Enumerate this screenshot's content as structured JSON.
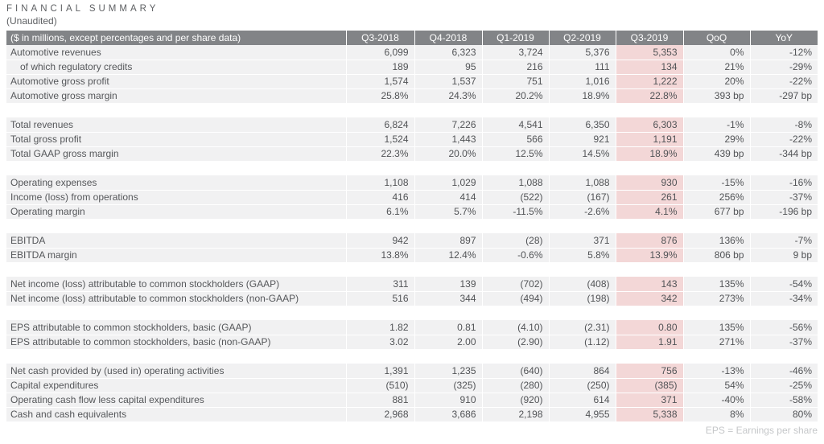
{
  "page": {
    "title": "FINANCIAL SUMMARY",
    "subtitle": "(Unaudited)",
    "footnote": "EPS = Earnings per share"
  },
  "colors": {
    "header_bg": "#828487",
    "row_bg": "#f1f1f2",
    "highlight_bg": "#f3d7d7",
    "header_text": "#ffffff",
    "body_text": "#515356",
    "footnote_text": "#c5c7c9"
  },
  "table": {
    "header_label": "($ in millions, except percentages and per share data)",
    "columns": [
      "Q3-2018",
      "Q4-2018",
      "Q1-2019",
      "Q2-2019",
      "Q3-2019",
      "QoQ",
      "YoY"
    ],
    "highlighted_column": "Q3-2019",
    "groups": [
      {
        "rows": [
          {
            "label": "Automotive revenues",
            "indent": false,
            "values": [
              "6,099",
              "6,323",
              "3,724",
              "5,376",
              "5,353",
              "0%",
              "-12%"
            ]
          },
          {
            "label": "of which regulatory credits",
            "indent": true,
            "values": [
              "189",
              "95",
              "216",
              "111",
              "134",
              "21%",
              "-29%"
            ]
          },
          {
            "label": "Automotive gross profit",
            "indent": false,
            "values": [
              "1,574",
              "1,537",
              "751",
              "1,016",
              "1,222",
              "20%",
              "-22%"
            ]
          },
          {
            "label": "Automotive gross margin",
            "indent": false,
            "values": [
              "25.8%",
              "24.3%",
              "20.2%",
              "18.9%",
              "22.8%",
              "393 bp",
              "-297 bp"
            ]
          }
        ]
      },
      {
        "rows": [
          {
            "label": "Total revenues",
            "indent": false,
            "values": [
              "6,824",
              "7,226",
              "4,541",
              "6,350",
              "6,303",
              "-1%",
              "-8%"
            ]
          },
          {
            "label": "Total gross profit",
            "indent": false,
            "values": [
              "1,524",
              "1,443",
              "566",
              "921",
              "1,191",
              "29%",
              "-22%"
            ]
          },
          {
            "label": "Total GAAP gross margin",
            "indent": false,
            "values": [
              "22.3%",
              "20.0%",
              "12.5%",
              "14.5%",
              "18.9%",
              "439 bp",
              "-344 bp"
            ]
          }
        ]
      },
      {
        "rows": [
          {
            "label": "Operating expenses",
            "indent": false,
            "values": [
              "1,108",
              "1,029",
              "1,088",
              "1,088",
              "930",
              "-15%",
              "-16%"
            ]
          },
          {
            "label": "Income (loss) from operations",
            "indent": false,
            "values": [
              "416",
              "414",
              "(522)",
              "(167)",
              "261",
              "256%",
              "-37%"
            ]
          },
          {
            "label": "Operating margin",
            "indent": false,
            "values": [
              "6.1%",
              "5.7%",
              "-11.5%",
              "-2.6%",
              "4.1%",
              "677 bp",
              "-196 bp"
            ]
          }
        ]
      },
      {
        "rows": [
          {
            "label": "EBITDA",
            "indent": false,
            "values": [
              "942",
              "897",
              "(28)",
              "371",
              "876",
              "136%",
              "-7%"
            ]
          },
          {
            "label": "EBITDA margin",
            "indent": false,
            "values": [
              "13.8%",
              "12.4%",
              "-0.6%",
              "5.8%",
              "13.9%",
              "806 bp",
              "9 bp"
            ]
          }
        ]
      },
      {
        "rows": [
          {
            "label": "Net income (loss) attributable to common stockholders (GAAP)",
            "indent": false,
            "values": [
              "311",
              "139",
              "(702)",
              "(408)",
              "143",
              "135%",
              "-54%"
            ]
          },
          {
            "label": "Net income (loss) attributable to common stockholders (non-GAAP)",
            "indent": false,
            "values": [
              "516",
              "344",
              "(494)",
              "(198)",
              "342",
              "273%",
              "-34%"
            ]
          }
        ]
      },
      {
        "rows": [
          {
            "label": "EPS attributable to common stockholders, basic (GAAP)",
            "indent": false,
            "values": [
              "1.82",
              "0.81",
              "(4.10)",
              "(2.31)",
              "0.80",
              "135%",
              "-56%"
            ]
          },
          {
            "label": "EPS attributable to common stockholders, basic (non-GAAP)",
            "indent": false,
            "values": [
              "3.02",
              "2.00",
              "(2.90)",
              "(1.12)",
              "1.91",
              "271%",
              "-37%"
            ]
          }
        ]
      },
      {
        "rows": [
          {
            "label": "Net cash provided by (used in) operating activities",
            "indent": false,
            "values": [
              "1,391",
              "1,235",
              "(640)",
              "864",
              "756",
              "-13%",
              "-46%"
            ]
          },
          {
            "label": "Capital expenditures",
            "indent": false,
            "values": [
              "(510)",
              "(325)",
              "(280)",
              "(250)",
              "(385)",
              "54%",
              "-25%"
            ]
          },
          {
            "label": "Operating cash flow less capital expenditures",
            "indent": false,
            "values": [
              "881",
              "910",
              "(920)",
              "614",
              "371",
              "-40%",
              "-58%"
            ]
          },
          {
            "label": "Cash and cash equivalents",
            "indent": false,
            "values": [
              "2,968",
              "3,686",
              "2,198",
              "4,955",
              "5,338",
              "8%",
              "80%"
            ]
          }
        ]
      }
    ]
  }
}
